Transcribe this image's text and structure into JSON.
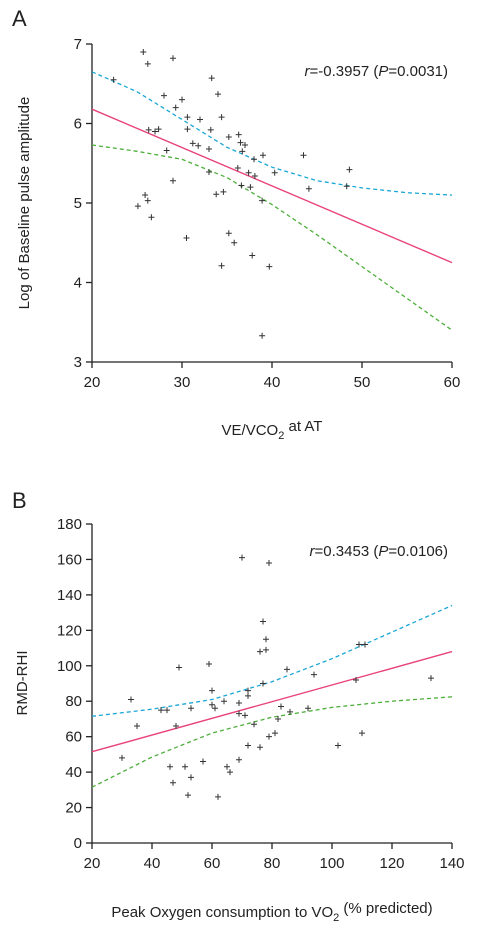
{
  "colors": {
    "fit": "#e8437a",
    "ci_upper": "#1aa7d6",
    "ci_lower": "#4caf3a",
    "points": "#333333"
  },
  "chart_data": [
    {
      "type": "scatter",
      "panel_label": "A",
      "xlabel_pre": "VE/VCO",
      "xlabel_sub": "2",
      "xlabel_post": " at AT",
      "ylabel": "Log of Baseline pulse amplitude",
      "annotation": {
        "r_label": "r",
        "r_value": "=-0.3957 (",
        "p_label": "P",
        "p_value": "=0.0031)"
      },
      "xlim": [
        20,
        60
      ],
      "ylim": [
        3,
        7
      ],
      "xticks": [
        "20",
        "30",
        "40",
        "50",
        "60"
      ],
      "yticks": [
        "3",
        "4",
        "5",
        "6",
        "7"
      ],
      "points": [
        [
          22.4,
          6.55
        ],
        [
          25.7,
          6.9
        ],
        [
          26.2,
          6.75
        ],
        [
          29.0,
          6.82
        ],
        [
          33.3,
          6.57
        ],
        [
          28.0,
          6.35
        ],
        [
          30.0,
          6.3
        ],
        [
          34.0,
          6.37
        ],
        [
          29.3,
          6.2
        ],
        [
          30.6,
          6.08
        ],
        [
          32.0,
          6.05
        ],
        [
          34.4,
          6.08
        ],
        [
          26.3,
          5.92
        ],
        [
          27.4,
          5.93
        ],
        [
          27.0,
          5.9
        ],
        [
          30.6,
          5.93
        ],
        [
          33.2,
          5.92
        ],
        [
          35.2,
          5.83
        ],
        [
          36.3,
          5.86
        ],
        [
          31.2,
          5.75
        ],
        [
          31.8,
          5.72
        ],
        [
          36.5,
          5.76
        ],
        [
          37.0,
          5.73
        ],
        [
          28.3,
          5.66
        ],
        [
          33.0,
          5.68
        ],
        [
          36.7,
          5.65
        ],
        [
          38.0,
          5.55
        ],
        [
          39.0,
          5.6
        ],
        [
          43.5,
          5.6
        ],
        [
          36.2,
          5.44
        ],
        [
          37.4,
          5.38
        ],
        [
          38.1,
          5.34
        ],
        [
          40.3,
          5.38
        ],
        [
          48.6,
          5.42
        ],
        [
          33.0,
          5.39
        ],
        [
          29.0,
          5.28
        ],
        [
          36.6,
          5.22
        ],
        [
          37.6,
          5.2
        ],
        [
          44.1,
          5.18
        ],
        [
          48.3,
          5.21
        ],
        [
          34.6,
          5.14
        ],
        [
          33.8,
          5.11
        ],
        [
          25.9,
          5.1
        ],
        [
          26.2,
          5.03
        ],
        [
          38.9,
          5.03
        ],
        [
          25.1,
          4.96
        ],
        [
          26.6,
          4.82
        ],
        [
          35.2,
          4.62
        ],
        [
          30.5,
          4.56
        ],
        [
          35.8,
          4.5
        ],
        [
          37.8,
          4.34
        ],
        [
          34.4,
          4.21
        ],
        [
          39.7,
          4.2
        ],
        [
          38.9,
          3.33
        ]
      ],
      "fit": [
        [
          20,
          6.18
        ],
        [
          60,
          4.25
        ]
      ],
      "ci_upper": [
        [
          20,
          6.65
        ],
        [
          25,
          6.4
        ],
        [
          30,
          6.05
        ],
        [
          35,
          5.7
        ],
        [
          40,
          5.45
        ],
        [
          45,
          5.28
        ],
        [
          50,
          5.19
        ],
        [
          55,
          5.13
        ],
        [
          60,
          5.1
        ]
      ],
      "ci_lower": [
        [
          20,
          5.73
        ],
        [
          25,
          5.65
        ],
        [
          30,
          5.55
        ],
        [
          35,
          5.32
        ],
        [
          40,
          4.98
        ],
        [
          45,
          4.6
        ],
        [
          50,
          4.2
        ],
        [
          55,
          3.8
        ],
        [
          60,
          3.4
        ]
      ]
    },
    {
      "type": "scatter",
      "panel_label": "B",
      "xlabel_pre": "Peak Oxygen consumption to VO",
      "xlabel_sub": "2",
      "xlabel_post": " (% predicted)",
      "ylabel": "RMD-RHI",
      "annotation": {
        "r_label": "r",
        "r_value": "=0.3453 (",
        "p_label": "P",
        "p_value": "=0.0106)"
      },
      "xlim": [
        20,
        140
      ],
      "ylim": [
        0,
        180
      ],
      "xticks": [
        "20",
        "40",
        "60",
        "80",
        "100",
        "120",
        "140"
      ],
      "yticks": [
        "0",
        "20",
        "40",
        "60",
        "80",
        "100",
        "120",
        "140",
        "160",
        "180"
      ],
      "points": [
        [
          70,
          161
        ],
        [
          79,
          158
        ],
        [
          77,
          125
        ],
        [
          78,
          115
        ],
        [
          78,
          109
        ],
        [
          76,
          108
        ],
        [
          109,
          112
        ],
        [
          111,
          112
        ],
        [
          59,
          101
        ],
        [
          49,
          99
        ],
        [
          85,
          98
        ],
        [
          94,
          95
        ],
        [
          108,
          92
        ],
        [
          133,
          93
        ],
        [
          77,
          90
        ],
        [
          72,
          86
        ],
        [
          60,
          86
        ],
        [
          72,
          83
        ],
        [
          33,
          81
        ],
        [
          64,
          80
        ],
        [
          69,
          79
        ],
        [
          60,
          78
        ],
        [
          61,
          76
        ],
        [
          83,
          77
        ],
        [
          92,
          76
        ],
        [
          53,
          76
        ],
        [
          43,
          75
        ],
        [
          45,
          75
        ],
        [
          86,
          74
        ],
        [
          71,
          72
        ],
        [
          69,
          73
        ],
        [
          82,
          70
        ],
        [
          35,
          66
        ],
        [
          48,
          66
        ],
        [
          74,
          67
        ],
        [
          81,
          62
        ],
        [
          79,
          60
        ],
        [
          110,
          62
        ],
        [
          72,
          55
        ],
        [
          102,
          55
        ],
        [
          76,
          54
        ],
        [
          30,
          48
        ],
        [
          69,
          47
        ],
        [
          57,
          46
        ],
        [
          65,
          43
        ],
        [
          51,
          43
        ],
        [
          46,
          43
        ],
        [
          66,
          40
        ],
        [
          53,
          37
        ],
        [
          47,
          34
        ],
        [
          52,
          27
        ],
        [
          62,
          26
        ]
      ],
      "fit": [
        [
          20,
          51.5
        ],
        [
          140,
          108
        ]
      ],
      "ci_upper": [
        [
          20,
          71.5
        ],
        [
          40,
          75.5
        ],
        [
          60,
          81
        ],
        [
          80,
          91
        ],
        [
          100,
          104
        ],
        [
          120,
          119
        ],
        [
          140,
          134
        ]
      ],
      "ci_lower": [
        [
          20,
          31.5
        ],
        [
          40,
          48.5
        ],
        [
          60,
          62
        ],
        [
          80,
          71
        ],
        [
          100,
          76.5
        ],
        [
          120,
          80
        ],
        [
          140,
          82.5
        ]
      ]
    }
  ]
}
